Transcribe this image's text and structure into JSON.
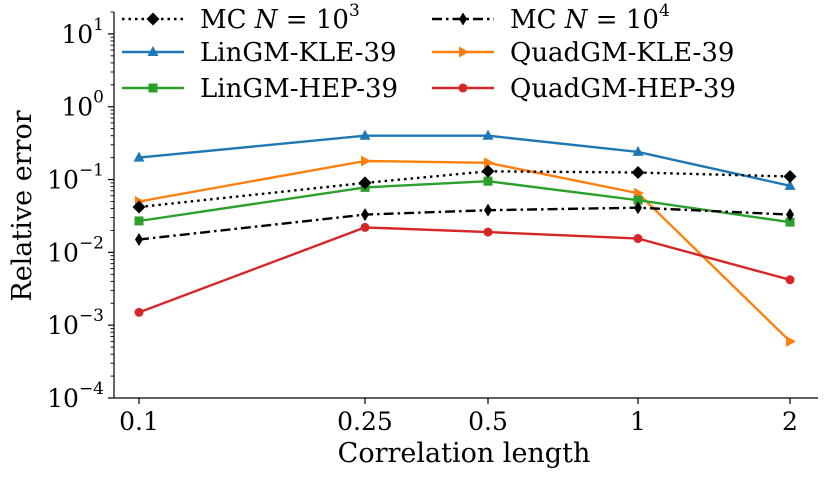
{
  "chart_data": {
    "type": "line",
    "title": "",
    "xlabel": "Correlation length",
    "ylabel": "Relative error",
    "yscale": "log",
    "ylim": [
      0.0001,
      20
    ],
    "categories": [
      "0.1",
      "0.25",
      "0.5",
      "1",
      "2"
    ],
    "y_ticks": [
      {
        "base": "10",
        "exp": "1"
      },
      {
        "base": "10",
        "exp": "0"
      },
      {
        "base": "10",
        "exp": "−1"
      },
      {
        "base": "10",
        "exp": "−2"
      },
      {
        "base": "10",
        "exp": "−3"
      },
      {
        "base": "10",
        "exp": "−4"
      }
    ],
    "legend_placement": "top",
    "series": [
      {
        "name": "MC N = 10^3",
        "label_prefix": "MC",
        "label_var": "N",
        "label_eq": "= 10",
        "label_exp": "3",
        "color": "#000000",
        "marker": "diamond",
        "linestyle": "dotted",
        "values": [
          0.042,
          0.09,
          0.13,
          0.125,
          0.11
        ]
      },
      {
        "name": "MC N = 10^4",
        "label_prefix": "MC",
        "label_var": "N",
        "label_eq": "= 10",
        "label_exp": "4",
        "color": "#000000",
        "marker": "thin-diamond",
        "linestyle": "dashdot",
        "values": [
          0.015,
          0.033,
          0.038,
          0.041,
          0.033
        ]
      },
      {
        "name": "LinGM-KLE-39",
        "color": "#1f77b4",
        "marker": "triangle-up",
        "linestyle": "solid",
        "values": [
          0.2,
          0.4,
          0.4,
          0.24,
          0.082
        ]
      },
      {
        "name": "QuadGM-KLE-39",
        "color": "#ff7f0e",
        "marker": "triangle-right",
        "linestyle": "solid",
        "values": [
          0.05,
          0.18,
          0.17,
          0.065,
          0.0006
        ]
      },
      {
        "name": "LinGM-HEP-39",
        "color": "#2ca02c",
        "marker": "square",
        "linestyle": "solid",
        "values": [
          0.027,
          0.078,
          0.095,
          0.052,
          0.026
        ]
      },
      {
        "name": "QuadGM-HEP-39",
        "color": "#d62728",
        "marker": "circle",
        "linestyle": "solid",
        "values": [
          0.0015,
          0.022,
          0.019,
          0.0155,
          0.0042
        ]
      }
    ]
  }
}
